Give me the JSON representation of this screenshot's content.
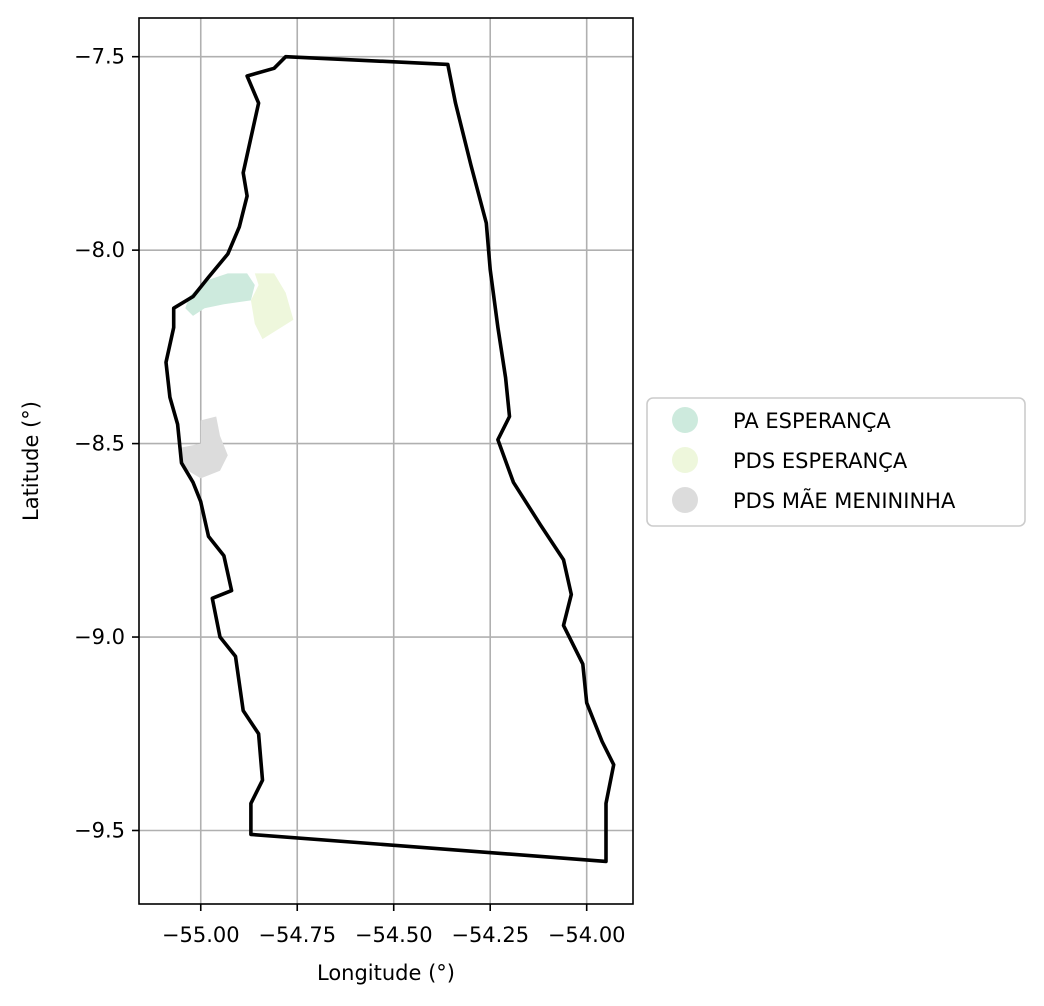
{
  "chart_data": {
    "type": "map",
    "xlabel": "Longitude (°)",
    "ylabel": "Latitude (°)",
    "xlim": [
      -55.16,
      -53.88
    ],
    "ylim": [
      -9.69,
      -7.4
    ],
    "xticks": [
      -55.0,
      -54.75,
      -54.5,
      -54.25,
      -54.0
    ],
    "xtick_labels": [
      "−55.00",
      "−54.75",
      "−54.50",
      "−54.25",
      "−54.00"
    ],
    "yticks": [
      -7.5,
      -8.0,
      -8.5,
      -9.0,
      -9.5
    ],
    "ytick_labels": [
      "−7.5",
      "−8.0",
      "−8.5",
      "−9.0",
      "−9.5"
    ],
    "grid": true,
    "legend_position": "right",
    "legend": [
      {
        "label": "PA ESPERANÇA",
        "color": "#cdeadd"
      },
      {
        "label": "PDS ESPERANÇA",
        "color": "#eef7dc"
      },
      {
        "label": "PDS MÃE MENININHA",
        "color": "#dcdcdc"
      }
    ],
    "boundary": {
      "color": "#000000",
      "points": [
        [
          -54.78,
          -7.5
        ],
        [
          -54.36,
          -7.52
        ],
        [
          -54.34,
          -7.62
        ],
        [
          -54.3,
          -7.78
        ],
        [
          -54.26,
          -7.93
        ],
        [
          -54.25,
          -8.05
        ],
        [
          -54.23,
          -8.2
        ],
        [
          -54.21,
          -8.33
        ],
        [
          -54.2,
          -8.43
        ],
        [
          -54.23,
          -8.49
        ],
        [
          -54.19,
          -8.6
        ],
        [
          -54.12,
          -8.71
        ],
        [
          -54.06,
          -8.8
        ],
        [
          -54.04,
          -8.89
        ],
        [
          -54.06,
          -8.97
        ],
        [
          -54.01,
          -9.07
        ],
        [
          -54.0,
          -9.17
        ],
        [
          -53.96,
          -9.27
        ],
        [
          -53.93,
          -9.33
        ],
        [
          -53.95,
          -9.43
        ],
        [
          -53.95,
          -9.58
        ],
        [
          -54.87,
          -9.51
        ],
        [
          -54.87,
          -9.43
        ],
        [
          -54.84,
          -9.37
        ],
        [
          -54.85,
          -9.25
        ],
        [
          -54.89,
          -9.19
        ],
        [
          -54.91,
          -9.05
        ],
        [
          -54.95,
          -9.0
        ],
        [
          -54.97,
          -8.9
        ],
        [
          -54.92,
          -8.88
        ],
        [
          -54.94,
          -8.79
        ],
        [
          -54.98,
          -8.74
        ],
        [
          -55.0,
          -8.65
        ],
        [
          -55.02,
          -8.6
        ],
        [
          -55.05,
          -8.55
        ],
        [
          -55.06,
          -8.45
        ],
        [
          -55.08,
          -8.38
        ],
        [
          -55.09,
          -8.29
        ],
        [
          -55.07,
          -8.2
        ],
        [
          -55.07,
          -8.15
        ],
        [
          -55.02,
          -8.12
        ],
        [
          -54.98,
          -8.07
        ],
        [
          -54.93,
          -8.01
        ],
        [
          -54.9,
          -7.94
        ],
        [
          -54.88,
          -7.86
        ],
        [
          -54.89,
          -7.8
        ],
        [
          -54.87,
          -7.71
        ],
        [
          -54.85,
          -7.62
        ],
        [
          -54.88,
          -7.55
        ],
        [
          -54.81,
          -7.53
        ]
      ]
    },
    "regions": [
      {
        "name": "PA ESPERANÇA",
        "color": "#cdeadd",
        "points": [
          [
            -55.03,
            -8.12
          ],
          [
            -54.99,
            -8.08
          ],
          [
            -54.93,
            -8.06
          ],
          [
            -54.88,
            -8.06
          ],
          [
            -54.86,
            -8.09
          ],
          [
            -54.87,
            -8.13
          ],
          [
            -54.94,
            -8.14
          ],
          [
            -54.99,
            -8.15
          ],
          [
            -55.02,
            -8.17
          ],
          [
            -55.04,
            -8.15
          ]
        ]
      },
      {
        "name": "PDS ESPERANÇA",
        "color": "#eef7dc",
        "points": [
          [
            -54.86,
            -8.06
          ],
          [
            -54.81,
            -8.06
          ],
          [
            -54.78,
            -8.11
          ],
          [
            -54.76,
            -8.18
          ],
          [
            -54.84,
            -8.23
          ],
          [
            -54.86,
            -8.19
          ],
          [
            -54.87,
            -8.13
          ],
          [
            -54.85,
            -8.09
          ]
        ]
      },
      {
        "name": "PDS MÃE MENININHA",
        "color": "#dcdcdc",
        "points": [
          [
            -55.0,
            -8.44
          ],
          [
            -54.96,
            -8.43
          ],
          [
            -54.95,
            -8.48
          ],
          [
            -54.93,
            -8.53
          ],
          [
            -54.95,
            -8.57
          ],
          [
            -55.0,
            -8.59
          ],
          [
            -55.05,
            -8.56
          ],
          [
            -55.05,
            -8.51
          ],
          [
            -55.0,
            -8.5
          ]
        ]
      }
    ]
  }
}
